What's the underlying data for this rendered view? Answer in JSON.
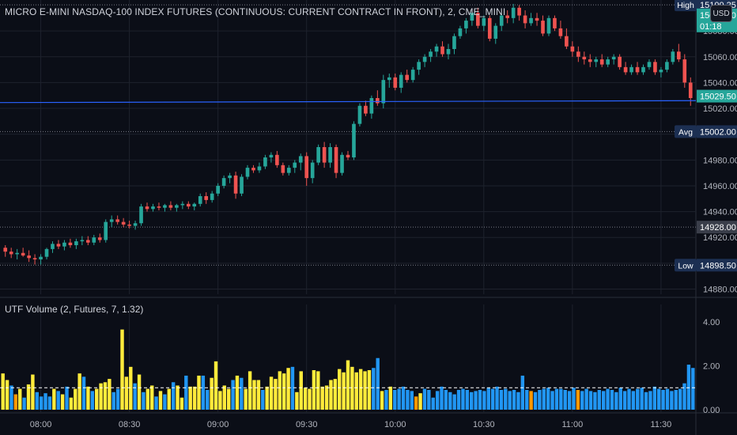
{
  "symbol_title": "MICRO E-MINI NASDAQ-100 INDEX FUTURES (CONTINUOUS: CURRENT CONTRACT IN FRONT), 2, CME_MINI",
  "currency": "USD",
  "indicator_title": "UTF Volume (2, Futures, 7, 1.32)",
  "colors": {
    "background": "#0b0e17",
    "up": "#26a69a",
    "down": "#ef5350",
    "grid": "#1e222d",
    "text": "#b2b5be",
    "price_line": "#2962ff",
    "vol_blue": "#2196f3",
    "vol_orange": "#ff9800",
    "vol_yellow": "#ffeb3b",
    "label_bg": "#1c2f52"
  },
  "chart_data": [
    {
      "type": "candlestick",
      "y_range": [
        14876,
        15104
      ],
      "y_ticks": [
        14880,
        14900,
        14920,
        14940,
        14960,
        14980,
        15000,
        15020,
        15040,
        15060,
        15080
      ],
      "y_tick_labels": [
        "14880.00",
        "14900.00",
        "14920.00",
        "14940.00",
        "14960.00",
        "14980.00",
        "15000.00",
        "15020.00",
        "15040.00",
        "15060.00",
        "15080.00"
      ],
      "x_tick_labels": [
        "08:00",
        "08:30",
        "09:00",
        "09:30",
        "10:00",
        "10:30",
        "11:00",
        "11:30"
      ],
      "x_tick_index": [
        6,
        21,
        36,
        51,
        66,
        81,
        96,
        111
      ],
      "price_labels": [
        {
          "tag": "High",
          "value": "15100.25",
          "price": 15100.25
        },
        {
          "tag": "",
          "value": "15092.50",
          "price": 15092.5,
          "sub": "01:18",
          "style": "current"
        },
        {
          "tag": "",
          "value": "15029.50",
          "price": 15029.5,
          "style": "current2"
        },
        {
          "tag": "Avg",
          "value": "15002.00",
          "price": 15002.0
        },
        {
          "tag": "",
          "value": "14928.00",
          "price": 14928.0,
          "style": "gray"
        },
        {
          "tag": "Low",
          "value": "14898.50",
          "price": 14898.5
        }
      ],
      "price_line": {
        "start": 15024.5,
        "end": 15026.0
      },
      "candles": [
        {
          "o": 14912,
          "h": 14914,
          "l": 14905,
          "c": 14909
        },
        {
          "o": 14909,
          "h": 14912,
          "l": 14904,
          "c": 14907
        },
        {
          "o": 14907,
          "h": 14911,
          "l": 14903,
          "c": 14908
        },
        {
          "o": 14908,
          "h": 14912,
          "l": 14905,
          "c": 14906
        },
        {
          "o": 14906,
          "h": 14910,
          "l": 14901,
          "c": 14904
        },
        {
          "o": 14904,
          "h": 14907,
          "l": 14899,
          "c": 14903
        },
        {
          "o": 14903,
          "h": 14907,
          "l": 14899,
          "c": 14905
        },
        {
          "o": 14905,
          "h": 14912,
          "l": 14903,
          "c": 14911
        },
        {
          "o": 14911,
          "h": 14917,
          "l": 14908,
          "c": 14915
        },
        {
          "o": 14915,
          "h": 14918,
          "l": 14911,
          "c": 14913
        },
        {
          "o": 14913,
          "h": 14918,
          "l": 14910,
          "c": 14916
        },
        {
          "o": 14916,
          "h": 14919,
          "l": 14912,
          "c": 14914
        },
        {
          "o": 14914,
          "h": 14919,
          "l": 14911,
          "c": 14917
        },
        {
          "o": 14917,
          "h": 14921,
          "l": 14914,
          "c": 14918
        },
        {
          "o": 14918,
          "h": 14921,
          "l": 14914,
          "c": 14916
        },
        {
          "o": 14916,
          "h": 14922,
          "l": 14914,
          "c": 14920
        },
        {
          "o": 14920,
          "h": 14923,
          "l": 14916,
          "c": 14918
        },
        {
          "o": 14918,
          "h": 14934,
          "l": 14916,
          "c": 14932
        },
        {
          "o": 14932,
          "h": 14937,
          "l": 14928,
          "c": 14934
        },
        {
          "o": 14934,
          "h": 14937,
          "l": 14930,
          "c": 14932
        },
        {
          "o": 14932,
          "h": 14935,
          "l": 14928,
          "c": 14930
        },
        {
          "o": 14930,
          "h": 14933,
          "l": 14927,
          "c": 14929
        },
        {
          "o": 14929,
          "h": 14933,
          "l": 14926,
          "c": 14931
        },
        {
          "o": 14931,
          "h": 14946,
          "l": 14929,
          "c": 14944
        },
        {
          "o": 14944,
          "h": 14947,
          "l": 14940,
          "c": 14942
        },
        {
          "o": 14942,
          "h": 14946,
          "l": 14940,
          "c": 14944
        },
        {
          "o": 14944,
          "h": 14947,
          "l": 14941,
          "c": 14943
        },
        {
          "o": 14943,
          "h": 14946,
          "l": 14940,
          "c": 14945
        },
        {
          "o": 14945,
          "h": 14948,
          "l": 14941,
          "c": 14943
        },
        {
          "o": 14943,
          "h": 14946,
          "l": 14940,
          "c": 14945
        },
        {
          "o": 14945,
          "h": 14948,
          "l": 14942,
          "c": 14946
        },
        {
          "o": 14946,
          "h": 14948,
          "l": 14942,
          "c": 14944
        },
        {
          "o": 14944,
          "h": 14947,
          "l": 14941,
          "c": 14946
        },
        {
          "o": 14946,
          "h": 14954,
          "l": 14944,
          "c": 14952
        },
        {
          "o": 14952,
          "h": 14955,
          "l": 14946,
          "c": 14949
        },
        {
          "o": 14949,
          "h": 14956,
          "l": 14947,
          "c": 14954
        },
        {
          "o": 14954,
          "h": 14962,
          "l": 14952,
          "c": 14960
        },
        {
          "o": 14960,
          "h": 14968,
          "l": 14958,
          "c": 14966
        },
        {
          "o": 14966,
          "h": 14970,
          "l": 14962,
          "c": 14968
        },
        {
          "o": 14968,
          "h": 14971,
          "l": 14950,
          "c": 14954
        },
        {
          "o": 14954,
          "h": 14969,
          "l": 14952,
          "c": 14967
        },
        {
          "o": 14967,
          "h": 14976,
          "l": 14965,
          "c": 14974
        },
        {
          "o": 14974,
          "h": 14976,
          "l": 14970,
          "c": 14972
        },
        {
          "o": 14972,
          "h": 14978,
          "l": 14970,
          "c": 14975
        },
        {
          "o": 14975,
          "h": 14984,
          "l": 14973,
          "c": 14982
        },
        {
          "o": 14982,
          "h": 14986,
          "l": 14978,
          "c": 14984
        },
        {
          "o": 14984,
          "h": 14987,
          "l": 14974,
          "c": 14976
        },
        {
          "o": 14976,
          "h": 14978,
          "l": 14968,
          "c": 14970
        },
        {
          "o": 14970,
          "h": 14976,
          "l": 14968,
          "c": 14974
        },
        {
          "o": 14974,
          "h": 14980,
          "l": 14970,
          "c": 14978
        },
        {
          "o": 14978,
          "h": 14985,
          "l": 14972,
          "c": 14983
        },
        {
          "o": 14983,
          "h": 14986,
          "l": 14960,
          "c": 14966
        },
        {
          "o": 14966,
          "h": 14980,
          "l": 14962,
          "c": 14978
        },
        {
          "o": 14978,
          "h": 14992,
          "l": 14976,
          "c": 14990
        },
        {
          "o": 14990,
          "h": 14994,
          "l": 14974,
          "c": 14978
        },
        {
          "o": 14978,
          "h": 14993,
          "l": 14974,
          "c": 14990
        },
        {
          "o": 14990,
          "h": 14992,
          "l": 14966,
          "c": 14970
        },
        {
          "o": 14970,
          "h": 14986,
          "l": 14968,
          "c": 14984
        },
        {
          "o": 14984,
          "h": 14987,
          "l": 14980,
          "c": 14982
        },
        {
          "o": 14982,
          "h": 15010,
          "l": 14980,
          "c": 15008
        },
        {
          "o": 15008,
          "h": 15024,
          "l": 15006,
          "c": 15022
        },
        {
          "o": 15022,
          "h": 15026,
          "l": 15014,
          "c": 15016
        },
        {
          "o": 15016,
          "h": 15030,
          "l": 15012,
          "c": 15028
        },
        {
          "o": 15028,
          "h": 15034,
          "l": 15022,
          "c": 15024
        },
        {
          "o": 15024,
          "h": 15046,
          "l": 15020,
          "c": 15042
        },
        {
          "o": 15042,
          "h": 15047,
          "l": 15036,
          "c": 15044
        },
        {
          "o": 15044,
          "h": 15047,
          "l": 15034,
          "c": 15036
        },
        {
          "o": 15036,
          "h": 15048,
          "l": 15032,
          "c": 15046
        },
        {
          "o": 15046,
          "h": 15050,
          "l": 15040,
          "c": 15042
        },
        {
          "o": 15042,
          "h": 15052,
          "l": 15040,
          "c": 15050
        },
        {
          "o": 15050,
          "h": 15058,
          "l": 15046,
          "c": 15056
        },
        {
          "o": 15056,
          "h": 15062,
          "l": 15052,
          "c": 15060
        },
        {
          "o": 15060,
          "h": 15066,
          "l": 15056,
          "c": 15064
        },
        {
          "o": 15064,
          "h": 15070,
          "l": 15060,
          "c": 15068
        },
        {
          "o": 15068,
          "h": 15072,
          "l": 15060,
          "c": 15062
        },
        {
          "o": 15062,
          "h": 15070,
          "l": 15058,
          "c": 15066
        },
        {
          "o": 15066,
          "h": 15078,
          "l": 15062,
          "c": 15076
        },
        {
          "o": 15076,
          "h": 15084,
          "l": 15074,
          "c": 15082
        },
        {
          "o": 15082,
          "h": 15090,
          "l": 15078,
          "c": 15088
        },
        {
          "o": 15088,
          "h": 15096,
          "l": 15084,
          "c": 15094
        },
        {
          "o": 15094,
          "h": 15098,
          "l": 15082,
          "c": 15084
        },
        {
          "o": 15084,
          "h": 15092,
          "l": 15080,
          "c": 15090
        },
        {
          "o": 15090,
          "h": 15092,
          "l": 15072,
          "c": 15074
        },
        {
          "o": 15074,
          "h": 15086,
          "l": 15070,
          "c": 15084
        },
        {
          "o": 15084,
          "h": 15094,
          "l": 15080,
          "c": 15092
        },
        {
          "o": 15092,
          "h": 15096,
          "l": 15086,
          "c": 15090
        },
        {
          "o": 15090,
          "h": 15101,
          "l": 15086,
          "c": 15098
        },
        {
          "o": 15098,
          "h": 15100,
          "l": 15088,
          "c": 15092
        },
        {
          "o": 15092,
          "h": 15096,
          "l": 15082,
          "c": 15086
        },
        {
          "o": 15086,
          "h": 15094,
          "l": 15084,
          "c": 15090
        },
        {
          "o": 15090,
          "h": 15094,
          "l": 15084,
          "c": 15088
        },
        {
          "o": 15088,
          "h": 15092,
          "l": 15076,
          "c": 15078
        },
        {
          "o": 15078,
          "h": 15092,
          "l": 15076,
          "c": 15090
        },
        {
          "o": 15090,
          "h": 15092,
          "l": 15080,
          "c": 15082
        },
        {
          "o": 15082,
          "h": 15088,
          "l": 15074,
          "c": 15076
        },
        {
          "o": 15076,
          "h": 15082,
          "l": 15066,
          "c": 15068
        },
        {
          "o": 15068,
          "h": 15072,
          "l": 15060,
          "c": 15064
        },
        {
          "o": 15064,
          "h": 15068,
          "l": 15056,
          "c": 15060
        },
        {
          "o": 15060,
          "h": 15064,
          "l": 15054,
          "c": 15058
        },
        {
          "o": 15058,
          "h": 15062,
          "l": 15052,
          "c": 15056
        },
        {
          "o": 15056,
          "h": 15060,
          "l": 15052,
          "c": 15058
        },
        {
          "o": 15058,
          "h": 15062,
          "l": 15052,
          "c": 15054
        },
        {
          "o": 15054,
          "h": 15060,
          "l": 15052,
          "c": 15058
        },
        {
          "o": 15058,
          "h": 15062,
          "l": 15054,
          "c": 15060
        },
        {
          "o": 15060,
          "h": 15062,
          "l": 15050,
          "c": 15052
        },
        {
          "o": 15052,
          "h": 15056,
          "l": 15046,
          "c": 15048
        },
        {
          "o": 15048,
          "h": 15054,
          "l": 15046,
          "c": 15052
        },
        {
          "o": 15052,
          "h": 15056,
          "l": 15046,
          "c": 15048
        },
        {
          "o": 15048,
          "h": 15054,
          "l": 15046,
          "c": 15052
        },
        {
          "o": 15052,
          "h": 15058,
          "l": 15050,
          "c": 15056
        },
        {
          "o": 15056,
          "h": 15058,
          "l": 15046,
          "c": 15048
        },
        {
          "o": 15048,
          "h": 15052,
          "l": 15044,
          "c": 15050
        },
        {
          "o": 15050,
          "h": 15058,
          "l": 15048,
          "c": 15056
        },
        {
          "o": 15056,
          "h": 15066,
          "l": 15054,
          "c": 15064
        },
        {
          "o": 15064,
          "h": 15070,
          "l": 15056,
          "c": 15058
        },
        {
          "o": 15058,
          "h": 15062,
          "l": 15036,
          "c": 15040
        },
        {
          "o": 15040,
          "h": 15044,
          "l": 15022,
          "c": 15028
        }
      ]
    },
    {
      "type": "bar",
      "y_range": [
        0,
        4.5
      ],
      "y_ticks": [
        0,
        2,
        4
      ],
      "y_tick_labels": [
        "0.00",
        "2.00",
        "4.00"
      ],
      "threshold": 1.0,
      "values": [
        1.65,
        1.35,
        1.1,
        0.7,
        0.95,
        0.55,
        1.15,
        1.6,
        0.8,
        0.6,
        0.75,
        0.6,
        0.95,
        0.85,
        0.7,
        1.05,
        0.55,
        0.95,
        1.65,
        1.5,
        1.05,
        0.85,
        0.95,
        1.2,
        1.25,
        1.4,
        0.8,
        0.95,
        3.65,
        1.5,
        1.95,
        1.2,
        1.6,
        0.8,
        0.95,
        1.1,
        0.6,
        0.85,
        0.7,
        0.95,
        1.25,
        1.1,
        0.55,
        1.55,
        1.05,
        1.05,
        1.55,
        1.55,
        0.9,
        1.45,
        2.2,
        0.85,
        1.1,
        0.95,
        1.35,
        1.55,
        1.45,
        0.95,
        1.75,
        1.35,
        1.35,
        0.9,
        1.05,
        1.5,
        1.4,
        1.75,
        1.65,
        1.9,
        1.95,
        0.8,
        1.75,
        1.0,
        0.95,
        1.8,
        1.75,
        1.05,
        1.1,
        1.35,
        1.4,
        1.85,
        1.7,
        2.25,
        1.95,
        1.7,
        1.85,
        1.75,
        1.8,
        1.9,
        2.35,
        0.85,
        0.9,
        1.05,
        0.9,
        0.95,
        1.05,
        0.9,
        0.85,
        0.6,
        0.75,
        0.95,
        0.9,
        0.55,
        0.85,
        1.05,
        0.9,
        0.8,
        0.7,
        0.9,
        0.95,
        0.9,
        0.8,
        0.85,
        0.9,
        0.85,
        1.0,
        0.95,
        1.05,
        0.9,
        0.95,
        0.85,
        0.9,
        0.8,
        1.55,
        0.9,
        0.85,
        0.8,
        0.9,
        0.95,
        1.0,
        0.85,
        0.95,
        0.95,
        0.9,
        0.85,
        1.0,
        0.9,
        0.85,
        0.95,
        0.85,
        0.8,
        0.9,
        0.85,
        0.95,
        0.9,
        0.8,
        1.0,
        0.85,
        0.95,
        0.85,
        0.95,
        1.0,
        0.8,
        0.85,
        1.05,
        0.95,
        0.9,
        0.95,
        0.85,
        0.9,
        0.95,
        1.2,
        2.05,
        1.9
      ],
      "colors_seq": "YYBOYBYYBBBBYBYBYYYBYBYYYYBBYYYBYBYYBYBYBYYBYYYBBYYYYYBYBYYYYBYYYYYYBYYYYYYYYYYYYYYYYYYBBYBYBBBBBOYBBBBBBBBBBBBBBBBBBBBBBBBBOBBBBBBBBBBOBBBBBBBBBBBBBBBBBBBBBBBBBBBBBBBOYY"
    }
  ]
}
